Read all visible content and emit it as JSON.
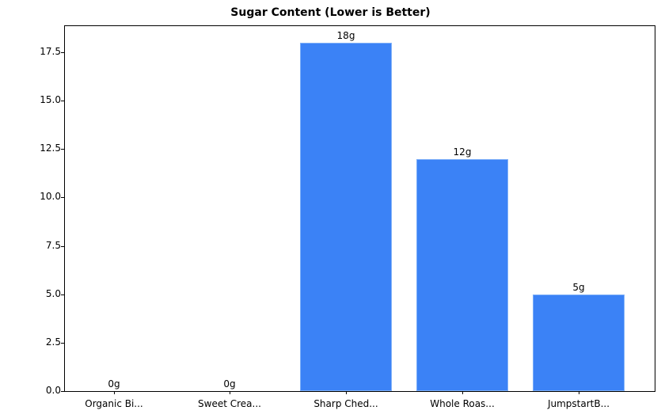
{
  "chart_data": {
    "type": "bar",
    "title": "Sugar Content (Lower is Better)",
    "xlabel": "",
    "ylabel": "",
    "categories": [
      "Organic Bi...",
      "Sweet Crea...",
      "Sharp Ched...",
      "Whole Roas...",
      "JumpstartB..."
    ],
    "values": [
      0,
      0,
      18,
      12,
      5
    ],
    "data_labels": [
      "0g",
      "0g",
      "18g",
      "12g",
      "5g"
    ],
    "ylim": [
      0,
      18.9
    ],
    "yticks": [
      "0.0",
      "2.5",
      "5.0",
      "7.5",
      "10.0",
      "12.5",
      "15.0",
      "17.5"
    ],
    "ytick_values": [
      0,
      2.5,
      5,
      7.5,
      10,
      12.5,
      15,
      17.5
    ],
    "bar_color": "#3b82f6",
    "grid": false,
    "legend": null
  }
}
